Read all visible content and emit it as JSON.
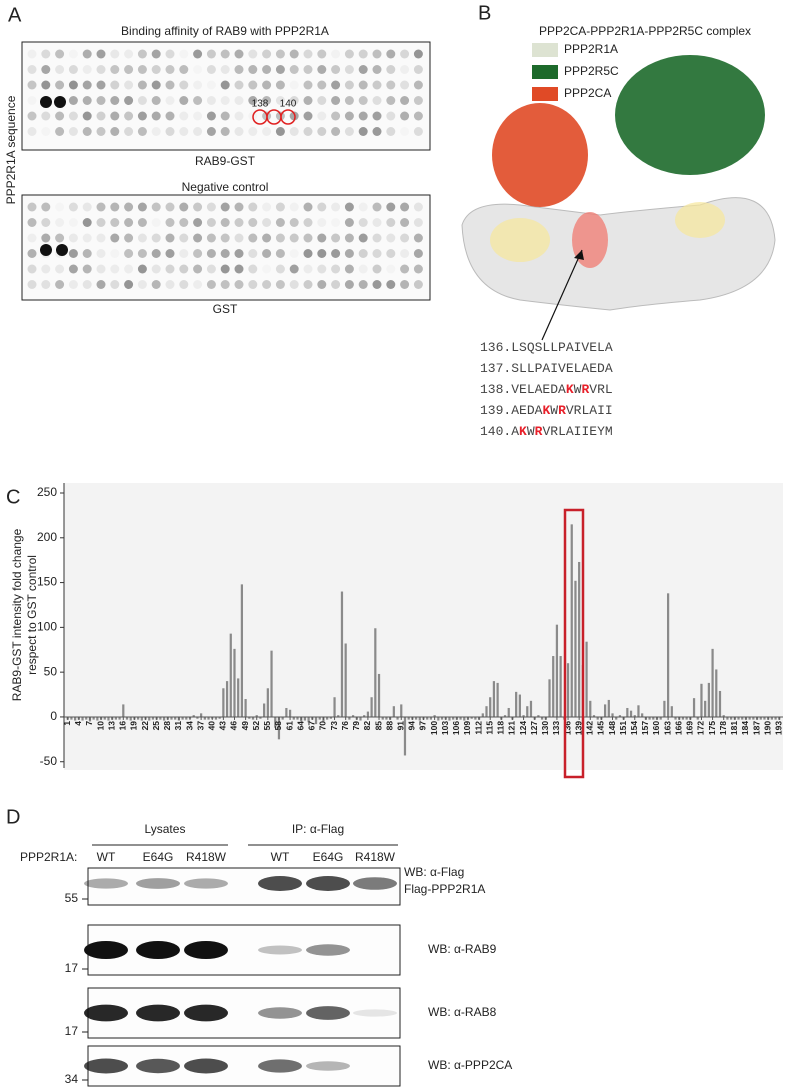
{
  "panel_a": {
    "label": "A",
    "title": "Binding affinity of RAB9 with PPP2R1A",
    "ylabel": "PPP2R1A sequence",
    "blot1_label": "RAB9-GST",
    "circle_labels": [
      "138",
      "140"
    ],
    "control_title": "Negative control",
    "blot2_label": "GST"
  },
  "panel_b": {
    "label": "B",
    "title": "PPP2CA-PPP2R1A-PPP2R5C complex",
    "legend": [
      {
        "name": "PPP2R1A",
        "color": "#dde3d2"
      },
      {
        "name": "PPP2R5C",
        "color": "#1d6a2b"
      },
      {
        "name": "PPP2CA",
        "color": "#e04a26"
      }
    ],
    "sequences": [
      {
        "number": "136.",
        "segments": [
          {
            "text": "LSQSLLPAIVELA"
          }
        ]
      },
      {
        "number": "137.",
        "segments": [
          {
            "text": "SLLPAIVELAEDA"
          }
        ]
      },
      {
        "number": "138.",
        "segments": [
          {
            "text": "VELAEDA"
          },
          {
            "text": "K",
            "color": "#e8202a"
          },
          {
            "text": "W"
          },
          {
            "text": "R",
            "color": "#e8202a"
          },
          {
            "text": "VRL"
          }
        ]
      },
      {
        "number": "139.",
        "segments": [
          {
            "text": "AEDA"
          },
          {
            "text": "K",
            "color": "#e8202a"
          },
          {
            "text": "W"
          },
          {
            "text": "R",
            "color": "#e8202a"
          },
          {
            "text": "VRLAII"
          }
        ]
      },
      {
        "number": "140.",
        "segments": [
          {
            "text": "A"
          },
          {
            "text": "K",
            "color": "#e8202a"
          },
          {
            "text": "W"
          },
          {
            "text": "R",
            "color": "#e8202a"
          },
          {
            "text": "VRLAIIEYM"
          }
        ]
      }
    ]
  },
  "panel_c": {
    "label": "C"
  },
  "chart_data": {
    "type": "bar",
    "ylabel": [
      "RAB9-GST intensity fold change",
      "respect to GST control"
    ],
    "color": "#8a8a8a",
    "x": [
      1,
      2,
      3,
      4,
      5,
      6,
      7,
      8,
      9,
      10,
      11,
      12,
      13,
      14,
      15,
      16,
      17,
      18,
      19,
      20,
      21,
      22,
      23,
      24,
      25,
      26,
      27,
      28,
      29,
      30,
      31,
      32,
      33,
      34,
      35,
      36,
      37,
      38,
      39,
      40,
      41,
      42,
      43,
      44,
      45,
      46,
      47,
      48,
      49,
      50,
      51,
      52,
      53,
      54,
      55,
      56,
      57,
      58,
      59,
      60,
      61,
      62,
      63,
      64,
      65,
      66,
      67,
      68,
      69,
      70,
      71,
      72,
      73,
      74,
      75,
      76,
      77,
      78,
      79,
      80,
      81,
      82,
      83,
      84,
      85,
      86,
      87,
      88,
      89,
      90,
      91,
      92,
      93,
      94,
      95,
      96,
      97,
      98,
      99,
      100,
      101,
      102,
      103,
      104,
      105,
      106,
      107,
      108,
      109,
      110,
      111,
      112,
      113,
      114,
      115,
      116,
      117,
      118,
      119,
      120,
      121,
      122,
      123,
      124,
      125,
      126,
      127,
      128,
      129,
      130,
      131,
      132,
      133,
      134,
      135,
      136,
      137,
      138,
      139,
      140,
      141,
      142,
      143,
      144,
      145,
      146,
      147,
      148,
      149,
      150,
      151,
      152,
      153,
      154,
      155,
      156,
      157,
      158,
      159,
      160,
      161,
      162,
      163,
      164,
      165,
      166,
      167,
      168,
      169,
      170,
      171,
      172,
      173,
      174,
      175,
      176,
      177,
      178,
      179,
      180,
      181,
      182,
      183,
      184,
      185,
      186,
      187,
      188,
      189,
      190,
      191,
      192,
      193
    ],
    "values": [
      -3,
      -3,
      -4,
      -3,
      -4,
      -3,
      -5,
      -3,
      -4,
      -3,
      -3,
      -4,
      -3,
      -3,
      -3,
      14,
      -3,
      -4,
      -3,
      -3,
      -4,
      -3,
      -4,
      -3,
      -3,
      -3,
      -4,
      -3,
      -3,
      -3,
      -4,
      -3,
      -3,
      -2,
      2,
      -2,
      4,
      -3,
      -3,
      -2,
      -3,
      -2,
      32,
      40,
      93,
      76,
      43,
      148,
      20,
      -2,
      -3,
      2,
      -2,
      15,
      32,
      74,
      -12,
      -25,
      -3,
      10,
      8,
      -3,
      -3,
      -5,
      -4,
      -6,
      -3,
      -8,
      -3,
      -5,
      -3,
      -2,
      22,
      2,
      140,
      82,
      -3,
      2,
      -3,
      -4,
      2,
      6,
      22,
      99,
      48,
      -3,
      -3,
      -3,
      12,
      -3,
      14,
      -43,
      -3,
      -3,
      -3,
      -4,
      -3,
      -3,
      -3,
      2,
      -4,
      -3,
      -3,
      -4,
      -3,
      -3,
      -3,
      -4,
      -3,
      -2,
      -3,
      -3,
      4,
      12,
      22,
      40,
      38,
      -3,
      2,
      10,
      -3,
      28,
      25,
      2,
      12,
      18,
      -3,
      2,
      -3,
      -3,
      42,
      68,
      103,
      68,
      -3,
      60,
      215,
      152,
      173,
      58,
      84,
      18,
      2,
      -3,
      -3,
      14,
      19,
      4,
      -3,
      2,
      -3,
      10,
      7,
      2,
      13,
      4,
      -3,
      -3,
      -3,
      -3,
      -3,
      18,
      138,
      12,
      -3,
      -3,
      -3,
      -3,
      -3,
      21,
      -3,
      37,
      18,
      38,
      76,
      53,
      29,
      2,
      -3,
      -3,
      -3,
      -3,
      -3,
      -3,
      -3,
      -3,
      -3,
      -3,
      -3,
      -3,
      -3,
      -3,
      -3
    ],
    "xlim": [
      0,
      194
    ],
    "ylim": [
      -57,
      250
    ],
    "yticks": [
      -50,
      0,
      50,
      100,
      150,
      200,
      250
    ],
    "xticks": [
      1,
      4,
      7,
      10,
      13,
      16,
      19,
      22,
      25,
      28,
      31,
      34,
      37,
      40,
      43,
      46,
      49,
      52,
      55,
      58,
      61,
      64,
      67,
      70,
      73,
      76,
      79,
      82,
      85,
      88,
      91,
      94,
      97,
      100,
      103,
      106,
      109,
      112,
      115,
      118,
      121,
      124,
      127,
      130,
      133,
      136,
      139,
      142,
      145,
      148,
      151,
      154,
      157,
      160,
      163,
      166,
      169,
      172,
      175,
      178,
      181,
      184,
      187,
      190,
      193
    ]
  },
  "panel_d": {
    "label": "D",
    "groups": [
      "Lysates",
      "IP: α-Flag"
    ],
    "row_label": "PPP2R1A:",
    "lanes": [
      "WT",
      "E64G",
      "R418W",
      "WT",
      "E64G",
      "R418W"
    ],
    "blots": [
      {
        "probe": "WB: α-Flag",
        "band": "Flag-PPP2R1A",
        "marker": "55"
      },
      {
        "probe": "WB: α-RAB9",
        "marker": "17"
      },
      {
        "probe": "WB: α-RAB8",
        "marker": "17"
      },
      {
        "probe": "WB: α-PPP2CA",
        "marker": "34"
      }
    ]
  }
}
